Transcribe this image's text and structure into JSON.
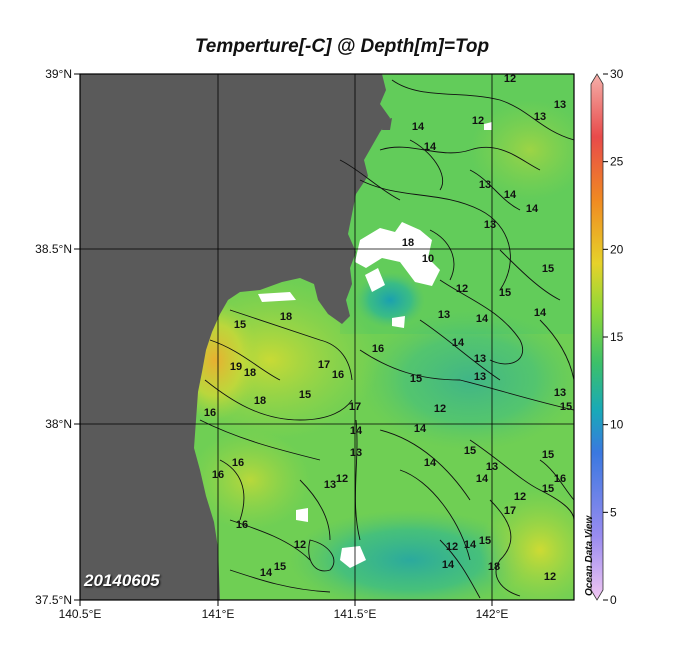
{
  "title": "Temperture[-C] @ Depth[m]=Top",
  "date_label": "20140605",
  "watermark": "Ocean Data View",
  "colors": {
    "land": "#5a5a5a",
    "no_data": "#ffffff",
    "grid": "#000000",
    "contour": "#111111"
  },
  "axes": {
    "x_ticks": [
      "140.5°E",
      "141°E",
      "141.5°E",
      "142°E"
    ],
    "y_ticks": [
      "39°N",
      "38.5°N",
      "38°N",
      "37.5°N"
    ]
  },
  "colorbar": {
    "min": 0,
    "max": 30,
    "tick_labels": [
      "30",
      "25",
      "20",
      "15",
      "10",
      "5",
      "0"
    ]
  },
  "contour_labels": [
    "12",
    "13",
    "13",
    "14",
    "14",
    "13",
    "12",
    "13",
    "14",
    "14",
    "15",
    "14",
    "15",
    "10",
    "12",
    "13",
    "14",
    "13",
    "13",
    "15",
    "14",
    "14",
    "14",
    "16",
    "16",
    "18",
    "18",
    "19",
    "18",
    "15",
    "17",
    "16",
    "16",
    "13",
    "13",
    "12",
    "14",
    "15",
    "14",
    "15",
    "13",
    "12",
    "14",
    "15",
    "15",
    "16",
    "17",
    "18",
    "15",
    "13",
    "12",
    "14",
    "12",
    "16",
    "18",
    "17",
    "12",
    "12",
    "14",
    "15",
    "15",
    "16"
  ]
}
